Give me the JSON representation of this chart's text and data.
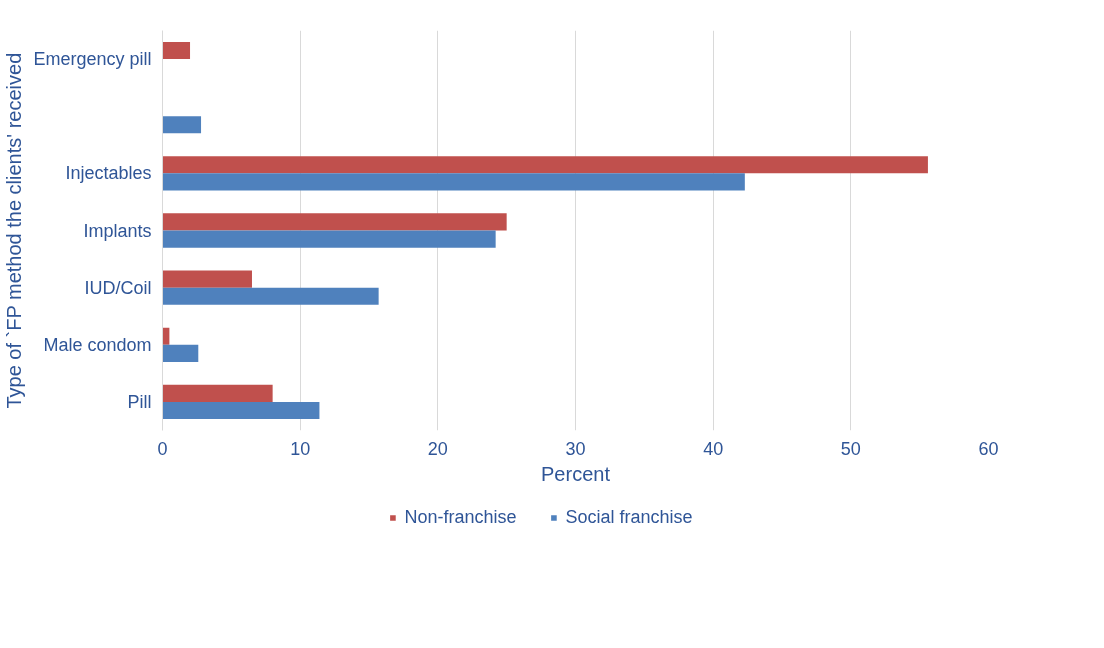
{
  "chart_data": {
    "type": "bar",
    "orientation": "horizontal",
    "xlabel": "Percent",
    "ylabel": "Type of `FP method the clients' received",
    "categories": [
      "Emergency pill",
      null,
      "Injectables",
      "Implants",
      "IUD/Coil",
      "Male condom",
      "Pill"
    ],
    "series": [
      {
        "name": "Non-franchise",
        "color": "#c0504d",
        "values": [
          2.0,
          null,
          55.6,
          25.0,
          6.5,
          0.5,
          8.0
        ]
      },
      {
        "name": "Social franchise",
        "color": "#4f81bd",
        "values": [
          null,
          2.8,
          42.3,
          24.2,
          15.7,
          2.6,
          11.4
        ]
      }
    ],
    "xlim": [
      0,
      60
    ],
    "xticks": [
      0,
      10,
      20,
      30,
      40,
      50,
      60
    ],
    "grid": "x",
    "legend": "bottom"
  }
}
